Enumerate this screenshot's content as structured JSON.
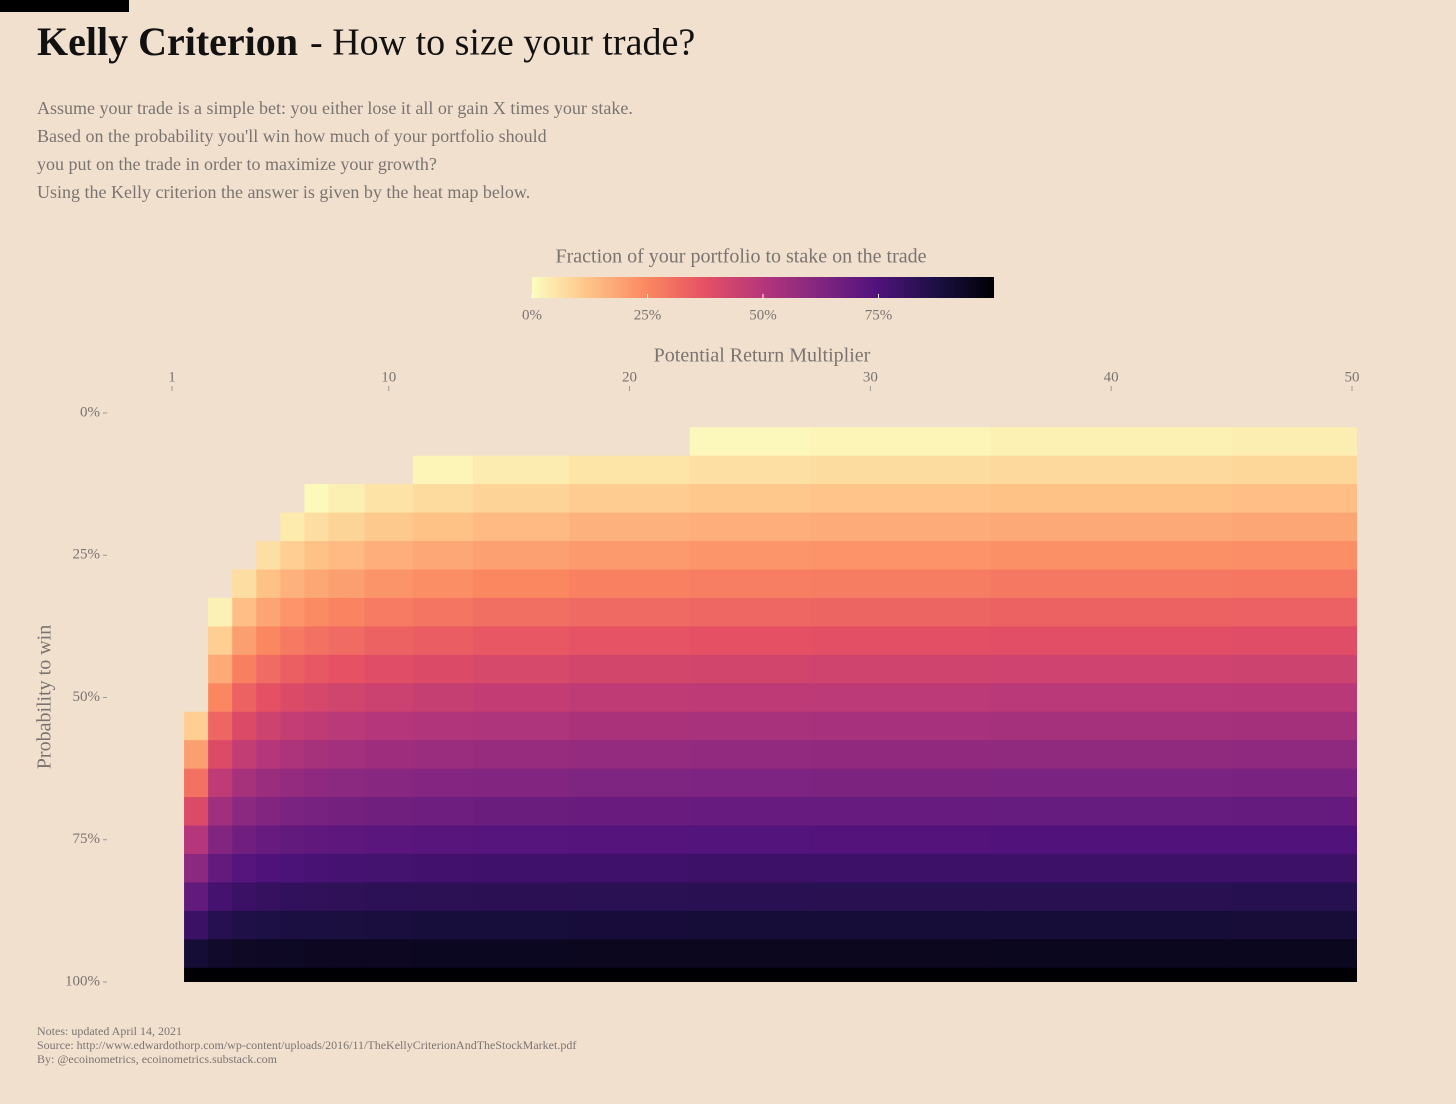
{
  "chart_data": {
    "type": "heatmap",
    "title": "Kelly Criterion",
    "title_rest": "- How to size your trade?",
    "subtitle": [
      "Assume your trade is a simple bet: you either lose it all or gain X times your stake.",
      "Based on the probability you'll win how much of your portfolio should",
      "you put on the trade in order to maximize your growth?",
      "Using the Kelly criterion the answer is given by the heat map below."
    ],
    "colorbar_title": "Fraction of your portfolio to stake on the trade",
    "zlim": [
      0,
      100
    ],
    "zticks": [
      {
        "value": 0,
        "label": "0%"
      },
      {
        "value": 25,
        "label": "25%"
      },
      {
        "value": 50,
        "label": "50%"
      },
      {
        "value": 75,
        "label": "75%"
      }
    ],
    "colorscale": [
      "#fcfdbf",
      "#fec287",
      "#fb8761",
      "#e55064",
      "#b5367a",
      "#812581",
      "#4f127b",
      "#1c1044",
      "#000004"
    ],
    "x_label": "Potential Return Multiplier",
    "y_label": "Probability to win",
    "xlim": [
      1,
      50
    ],
    "xticks": [
      1,
      10,
      20,
      30,
      40,
      50
    ],
    "ylim": [
      0,
      100
    ],
    "yticks": [
      {
        "value": 0,
        "label": "0%"
      },
      {
        "value": 25,
        "label": "25%"
      },
      {
        "value": 50,
        "label": "50%"
      },
      {
        "value": 75,
        "label": "75%"
      },
      {
        "value": 100,
        "label": "100%"
      }
    ],
    "x": [
      2,
      3,
      4,
      5,
      6,
      7,
      8,
      10,
      12,
      15,
      20,
      25,
      30,
      40,
      50
    ],
    "y": [
      0,
      5,
      10,
      15,
      20,
      25,
      30,
      35,
      40,
      45,
      50,
      55,
      60,
      65,
      70,
      75,
      80,
      85,
      90,
      95,
      100
    ],
    "z": [
      [
        null,
        null,
        null,
        null,
        null,
        null,
        null,
        null,
        null,
        null,
        null,
        10,
        20,
        30,
        40,
        50,
        60,
        70,
        80,
        90,
        100
      ],
      [
        null,
        null,
        null,
        null,
        null,
        null,
        null,
        2.5,
        10,
        17.5,
        25,
        32.5,
        40,
        47.5,
        55,
        62.5,
        70,
        77.5,
        85,
        92.5,
        100
      ],
      [
        null,
        null,
        null,
        null,
        null,
        null,
        6.7,
        13.3,
        20,
        26.7,
        33.3,
        40,
        46.7,
        53.3,
        60,
        66.7,
        73.3,
        80,
        86.7,
        93.3,
        100
      ],
      [
        null,
        null,
        null,
        null,
        null,
        6.3,
        12.5,
        18.8,
        25,
        31.3,
        37.5,
        43.8,
        50,
        56.3,
        62.5,
        68.8,
        75,
        81.3,
        87.5,
        93.8,
        100
      ],
      [
        null,
        null,
        null,
        null,
        4,
        10,
        16,
        22,
        28,
        34,
        40,
        46,
        52,
        58,
        64,
        70,
        76,
        82,
        88,
        94,
        100
      ],
      [
        null,
        null,
        null,
        0.8,
        6.7,
        12.5,
        18.3,
        24.2,
        30,
        35.8,
        41.7,
        47.5,
        53.3,
        59.2,
        65,
        70.8,
        76.7,
        82.5,
        88.3,
        94.2,
        100
      ],
      [
        null,
        null,
        null,
        2.9,
        8.6,
        14.3,
        20,
        25.7,
        31.4,
        37.1,
        42.9,
        48.6,
        54.3,
        60,
        65.7,
        71.4,
        77.1,
        82.9,
        88.6,
        94.3,
        100
      ],
      [
        null,
        null,
        null,
        5.6,
        11.1,
        16.7,
        22.2,
        27.8,
        33.3,
        38.9,
        44.4,
        50,
        55.6,
        61.1,
        66.7,
        72.2,
        77.8,
        83.3,
        88.9,
        94.4,
        100
      ],
      [
        null,
        null,
        1.8,
        7.3,
        12.7,
        18.2,
        23.6,
        29.1,
        34.5,
        40,
        45.5,
        50.9,
        56.4,
        61.8,
        67.3,
        72.7,
        78.2,
        83.6,
        89.1,
        94.5,
        100
      ],
      [
        null,
        null,
        3.6,
        8.9,
        14.3,
        19.6,
        25,
        30.4,
        35.7,
        41.1,
        46.4,
        51.8,
        57.1,
        62.5,
        67.9,
        73.2,
        78.6,
        83.9,
        89.3,
        94.6,
        100
      ],
      [
        null,
        null,
        5.3,
        10.5,
        15.8,
        21.1,
        26.3,
        31.6,
        36.8,
        42.1,
        47.4,
        52.6,
        57.9,
        63.2,
        68.4,
        73.7,
        78.9,
        84.2,
        89.5,
        94.7,
        100
      ],
      [
        null,
        1,
        6.3,
        11.5,
        16.7,
        21.9,
        27.1,
        32.3,
        37.5,
        42.7,
        47.9,
        53.1,
        58.3,
        63.5,
        68.8,
        74,
        79.2,
        84.4,
        89.6,
        94.8,
        100
      ],
      [
        null,
        1.7,
        6.9,
        12.1,
        17.2,
        22.4,
        27.6,
        32.8,
        37.9,
        43.1,
        48.3,
        53.4,
        58.6,
        63.8,
        69,
        74.1,
        79.3,
        84.5,
        89.7,
        94.8,
        100
      ],
      [
        null,
        2.6,
        7.7,
        12.8,
        17.9,
        23.1,
        28.2,
        33.3,
        38.5,
        43.6,
        48.7,
        53.8,
        59,
        64.1,
        69.2,
        74.4,
        79.5,
        84.6,
        89.7,
        94.9,
        100
      ],
      [
        null,
        3.1,
        8.2,
        13.3,
        18.4,
        23.5,
        28.6,
        33.7,
        38.8,
        43.9,
        49,
        54.1,
        59.2,
        64.3,
        69.4,
        74.5,
        79.6,
        84.7,
        89.8,
        94.9,
        100
      ]
    ],
    "notes": [
      "Notes: updated April 14, 2021",
      "Source: http://www.edwardothorp.com/wp-content/uploads/2016/11/TheKellyCriterionAndTheStockMarket.pdf",
      "By: @ecoinometrics, ecoinometrics.substack.com"
    ]
  }
}
